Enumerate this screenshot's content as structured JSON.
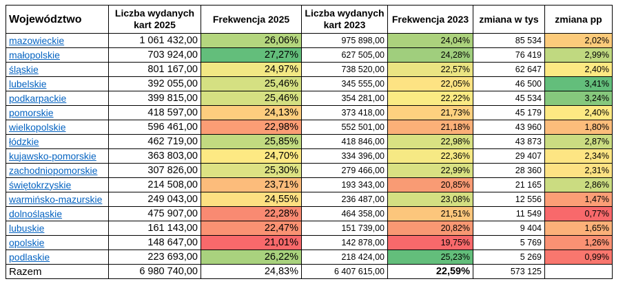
{
  "headers": {
    "wojewodztwo": "Województwo",
    "karty2025": "Liczba wydanych kart 2025",
    "frek2025": "Frekwencja 2025",
    "karty2023": "Liczba wydanych kart 2023",
    "frek2023": "Frekwencja 2023",
    "zmiana_tys": "zmiana w tys",
    "zmiana_pp": "zmiana pp"
  },
  "rows": [
    {
      "name": "mazowieckie",
      "karty2025": "1 061 432,00",
      "frek2025": "26,06%",
      "karty2023": "975 898,00",
      "frek2023": "24,04%",
      "zmiana_tys": "85 534",
      "zmiana_pp": "2,02%",
      "c_frek2025": "#b4d67e",
      "c_frek2023": "#acd27d",
      "c_pp": "#fccb7b"
    },
    {
      "name": "małopolskie",
      "karty2025": "703 924,00",
      "frek2025": "27,27%",
      "karty2023": "627 505,00",
      "frek2023": "24,28%",
      "zmiana_tys": "76 419",
      "zmiana_pp": "2,99%",
      "c_frek2025": "#63be7b",
      "c_frek2023": "#a0ce7d",
      "c_pp": "#c0d980"
    },
    {
      "name": "śląskie",
      "karty2025": "801 167,00",
      "frek2025": "24,97%",
      "karty2023": "738 520,00",
      "frek2023": "22,57%",
      "zmiana_tys": "62 647",
      "zmiana_pp": "2,40%",
      "c_frek2025": "#f2e884",
      "c_frek2023": "#ebe482",
      "c_pp": "#fde983"
    },
    {
      "name": "lubelskie",
      "karty2025": "392 055,00",
      "frek2025": "25,46%",
      "karty2023": "345 555,00",
      "frek2023": "22,05%",
      "zmiana_tys": "46 500",
      "zmiana_pp": "3,41%",
      "c_frek2025": "#d5e082",
      "c_frek2023": "#fde383",
      "c_pp": "#63be7b"
    },
    {
      "name": "podkarpackie",
      "karty2025": "399 815,00",
      "frek2025": "25,46%",
      "karty2023": "354 281,00",
      "frek2023": "22,22%",
      "zmiana_tys": "45 534",
      "zmiana_pp": "3,24%",
      "c_frek2025": "#d5e082",
      "c_frek2023": "#faeb84",
      "c_pp": "#86c87d"
    },
    {
      "name": "pomorskie",
      "karty2025": "418 597,00",
      "frek2025": "24,13%",
      "karty2023": "373 418,00",
      "frek2023": "21,73%",
      "zmiana_tys": "45 179",
      "zmiana_pp": "2,40%",
      "c_frek2025": "#fdcd7e",
      "c_frek2023": "#fdd17f",
      "c_pp": "#fde983"
    },
    {
      "name": "wielkopolskie",
      "karty2025": "596 461,00",
      "frek2025": "22,98%",
      "karty2023": "552 501,00",
      "frek2023": "21,18%",
      "zmiana_tys": "43 960",
      "zmiana_pp": "1,80%",
      "c_frek2025": "#fb9d75",
      "c_frek2023": "#fbb078",
      "c_pp": "#fcbd7b"
    },
    {
      "name": "łódzkie",
      "karty2025": "462 719,00",
      "frek2025": "25,85%",
      "karty2023": "418 846,00",
      "frek2023": "22,98%",
      "zmiana_tys": "43 873",
      "zmiana_pp": "2,87%",
      "c_frek2025": "#c2da80",
      "c_frek2023": "#d9e182",
      "c_pp": "#cbdc81"
    },
    {
      "name": "kujawsko-pomorskie",
      "karty2025": "363 803,00",
      "frek2025": "24,70%",
      "karty2023": "334 396,00",
      "frek2023": "22,36%",
      "zmiana_tys": "29 407",
      "zmiana_pp": "2,34%",
      "c_frek2025": "#fde983",
      "c_frek2023": "#f6e984",
      "c_pp": "#fde583"
    },
    {
      "name": "zachodniopomorskie",
      "karty2025": "307 826,00",
      "frek2025": "25,30%",
      "karty2023": "279 466,00",
      "frek2023": "22,99%",
      "zmiana_tys": "28 360",
      "zmiana_pp": "2,31%",
      "c_frek2025": "#dde283",
      "c_frek2023": "#d9e182",
      "c_pp": "#fde283"
    },
    {
      "name": "świętokrzyskie",
      "karty2025": "214 508,00",
      "frek2025": "23,71%",
      "karty2023": "193 343,00",
      "frek2023": "20,85%",
      "zmiana_tys": "21 165",
      "zmiana_pp": "2,86%",
      "c_frek2025": "#fcbc7b",
      "c_frek2023": "#f99b74",
      "c_pp": "#cbdc81"
    },
    {
      "name": "warmińsko-mazurskie",
      "karty2025": "249 043,00",
      "frek2025": "24,55%",
      "karty2023": "236 487,00",
      "frek2023": "23,08%",
      "zmiana_tys": "12 556",
      "zmiana_pp": "1,47%",
      "c_frek2025": "#fde082",
      "c_frek2023": "#d4df82",
      "c_pp": "#fb9e76"
    },
    {
      "name": "dolnośląskie",
      "karty2025": "475 907,00",
      "frek2025": "22,28%",
      "karty2023": "464 358,00",
      "frek2023": "21,51%",
      "zmiana_tys": "11 549",
      "zmiana_pp": "0,77%",
      "c_frek2025": "#f98a72",
      "c_frek2023": "#fcc67c",
      "c_pp": "#f8696b"
    },
    {
      "name": "lubuskie",
      "karty2025": "161 143,00",
      "frek2025": "22,47%",
      "karty2023": "151 739,00",
      "frek2023": "20,82%",
      "zmiana_tys": "9 404",
      "zmiana_pp": "1,65%",
      "c_frek2025": "#fa9273",
      "c_frek2023": "#f99873",
      "c_pp": "#fcb179"
    },
    {
      "name": "opolskie",
      "karty2025": "148 647,00",
      "frek2025": "21,01%",
      "karty2023": "142 878,00",
      "frek2023": "19,75%",
      "zmiana_tys": "5 769",
      "zmiana_pp": "1,26%",
      "c_frek2025": "#f8696b",
      "c_frek2023": "#f8696b",
      "c_pp": "#fa9173"
    },
    {
      "name": "podlaskie",
      "karty2025": "223 693,00",
      "frek2025": "26,22%",
      "karty2023": "218 424,00",
      "frek2023": "25,23%",
      "zmiana_tys": "5 269",
      "zmiana_pp": "0,99%",
      "c_frek2025": "#a9d27e",
      "c_frek2023": "#63be7b",
      "c_pp": "#f9776e"
    }
  ],
  "total": {
    "name": "Razem",
    "karty2025": "6 980 740,00",
    "frek2025": "24,83%",
    "karty2023": "6 407 615,00",
    "frek2023": "22,59%",
    "zmiana_tys": "573 125",
    "zmiana_pp": ""
  }
}
